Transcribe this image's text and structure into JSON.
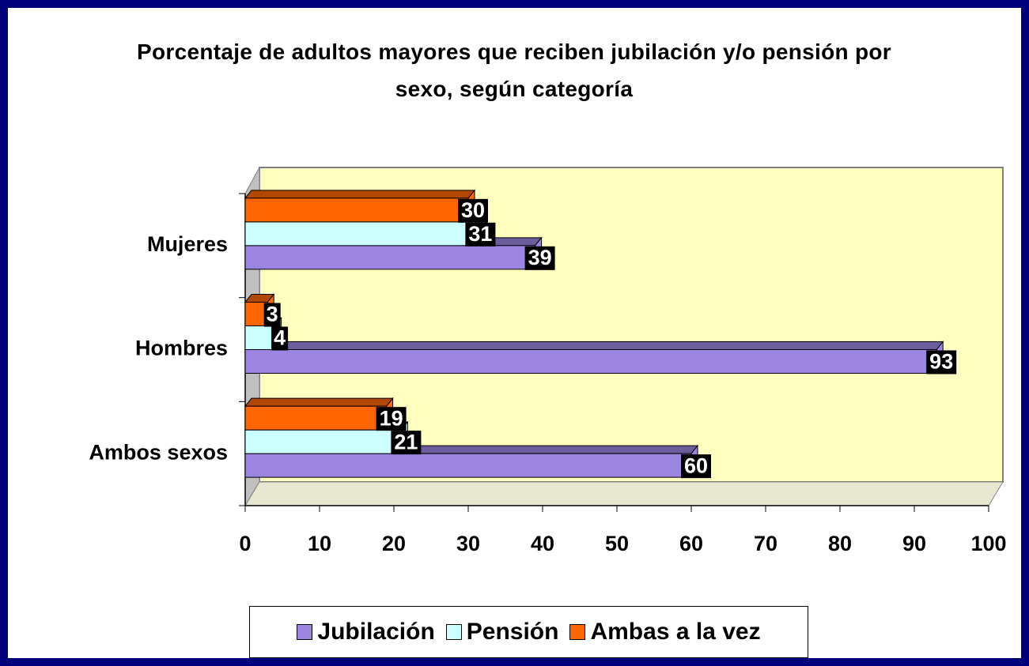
{
  "chart_data": {
    "type": "bar",
    "orientation": "horizontal",
    "title": "Porcentaje de adultos mayores que reciben jubilación y/o pensión por sexo, según categoría",
    "categories": [
      "Ambos sexos",
      "Hombres",
      "Mujeres"
    ],
    "series": [
      {
        "name": "Jubilación",
        "color": "#9a85e0",
        "values": [
          60,
          93,
          39
        ]
      },
      {
        "name": "Pensión",
        "color": "#ccffff",
        "values": [
          21,
          4,
          31
        ]
      },
      {
        "name": "Ambas a la vez",
        "color": "#ff6600",
        "values": [
          19,
          3,
          30
        ]
      }
    ],
    "xlim": [
      0,
      100
    ],
    "xticks": [
      0,
      10,
      20,
      30,
      40,
      50,
      60,
      70,
      80,
      90,
      100
    ],
    "legend": "bottom"
  }
}
